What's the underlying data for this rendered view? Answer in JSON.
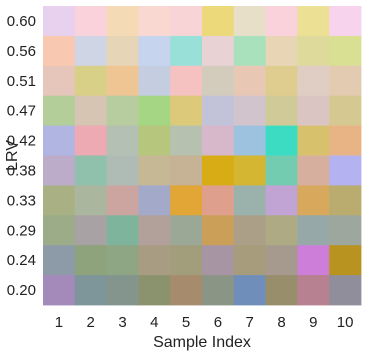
{
  "chart_data": {
    "type": "heatmap",
    "xlabel": "Sample Index",
    "ylabel": "LRV",
    "x_categories": [
      "1",
      "2",
      "3",
      "4",
      "5",
      "6",
      "7",
      "8",
      "9",
      "10"
    ],
    "y_categories": [
      "0.60",
      "0.56",
      "0.51",
      "0.47",
      "0.42",
      "0.38",
      "0.33",
      "0.29",
      "0.24",
      "0.20"
    ],
    "cell_colors": [
      [
        "#e8d0ef",
        "#f9d2dc",
        "#f5dbb5",
        "#f9d8d2",
        "#f8d4d7",
        "#ecd97a",
        "#e8dfc9",
        "#f9d2dc",
        "#ebe094",
        "#f8d3ee"
      ],
      [
        "#f8c8b1",
        "#cfd5e4",
        "#e6d5b7",
        "#c7d4ee",
        "#99e0d8",
        "#e9d2d4",
        "#a9e1bd",
        "#e8d5b6",
        "#ddda9c",
        "#d9df93"
      ],
      [
        "#e6c5ba",
        "#d8d087",
        "#efc593",
        "#c5cee0",
        "#f5c1c1",
        "#d3ccbc",
        "#e8c8b5",
        "#dfcd8f",
        "#e0cec5",
        "#e2cbb0"
      ],
      [
        "#b3ce98",
        "#d6c5b3",
        "#b7cc9f",
        "#a4d683",
        "#dcc97a",
        "#c2c2d9",
        "#d2c4cc",
        "#cfca97",
        "#dbc5c3",
        "#d5c891"
      ],
      [
        "#b1b5e1",
        "#eeaab2",
        "#b5c0b5",
        "#b6c77d",
        "#b6c1b0",
        "#d7b8cb",
        "#9cc2df",
        "#3bdcc2",
        "#d8c16d",
        "#e9b485"
      ],
      [
        "#bcacca",
        "#8fc1ad",
        "#aebcb5",
        "#c6b795",
        "#c6b295",
        "#d8ac14",
        "#d4b632",
        "#73ccb0",
        "#d7af9f",
        "#b4b2f1"
      ],
      [
        "#a9b184",
        "#aab69d",
        "#cca5a0",
        "#a2a9c9",
        "#e2a636",
        "#dea08c",
        "#9bb2ac",
        "#c1a3d4",
        "#d8a95d",
        "#b9ac6e"
      ],
      [
        "#9cac88",
        "#a9a2a5",
        "#7db49b",
        "#b2a19b",
        "#9ba896",
        "#cc9f58",
        "#ab9f87",
        "#aeaa84",
        "#97a8a9",
        "#9ea79d"
      ],
      [
        "#8d9ba9",
        "#8ea37c",
        "#8fa684",
        "#a89d83",
        "#a29e7b",
        "#a895a3",
        "#a79c7c",
        "#a59a8d",
        "#cc7ed9",
        "#b9931f"
      ],
      [
        "#a38aba",
        "#7e9599",
        "#84958d",
        "#8b926e",
        "#a68c6d",
        "#8a9585",
        "#6f8fba",
        "#998e6c",
        "#b88191",
        "#8f8e9a"
      ]
    ]
  }
}
